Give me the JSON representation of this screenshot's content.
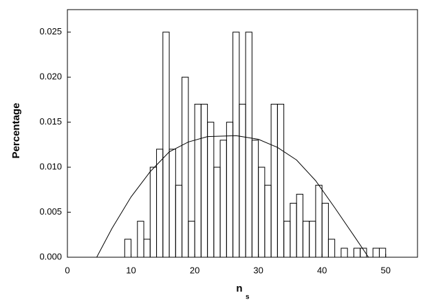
{
  "chart_data": {
    "type": "histogram",
    "x_label": "n",
    "x_label_subscript": "s",
    "y_label": "Percentage",
    "bins": [
      9,
      10,
      11,
      12,
      13,
      14,
      15,
      16,
      17,
      18,
      19,
      20,
      21,
      22,
      23,
      24,
      25,
      26,
      27,
      28,
      29,
      30,
      31,
      32,
      33,
      34,
      35,
      36,
      37,
      38,
      39,
      40,
      41,
      42,
      43,
      44,
      45,
      46,
      47,
      48,
      49,
      50
    ],
    "values": [
      0.002,
      0,
      0.004,
      0.002,
      0.01,
      0.012,
      0.025,
      0.012,
      0.008,
      0.02,
      0.004,
      0.017,
      0.017,
      0.015,
      0.01,
      0.013,
      0.015,
      0.025,
      0.017,
      0.025,
      0.013,
      0.01,
      0.008,
      0.017,
      0.017,
      0.004,
      0.006,
      0.007,
      0.004,
      0.004,
      0.008,
      0.006,
      0.002,
      0,
      0.001,
      0,
      0.001,
      0.001,
      0,
      0.001,
      0.001
    ],
    "color": "#000000",
    "fit": {
      "type": "line",
      "color": "#000000",
      "x": [
        4.6,
        7,
        10,
        13,
        16,
        19,
        22,
        26.5,
        30,
        33,
        36,
        39,
        42,
        45,
        47.3
      ],
      "values": [
        0,
        0.0032,
        0.0067,
        0.0095,
        0.0117,
        0.0128,
        0.0134,
        0.0135,
        0.0131,
        0.0122,
        0.0108,
        0.0085,
        0.0055,
        0.0024,
        0
      ]
    },
    "xlim": [
      0,
      55
    ],
    "xticks": [
      0,
      10,
      20,
      30,
      40,
      50
    ],
    "ylim": [
      0,
      0.0275
    ],
    "yticks": [
      {
        "value": 0,
        "label": "0.000"
      },
      {
        "value": 0.005,
        "label": "0.005"
      },
      {
        "value": 0.01,
        "label": "0.010"
      },
      {
        "value": 0.015,
        "label": "0.015"
      },
      {
        "value": 0.02,
        "label": "0.020"
      },
      {
        "value": 0.025,
        "label": "0.025"
      }
    ],
    "grid": false
  }
}
